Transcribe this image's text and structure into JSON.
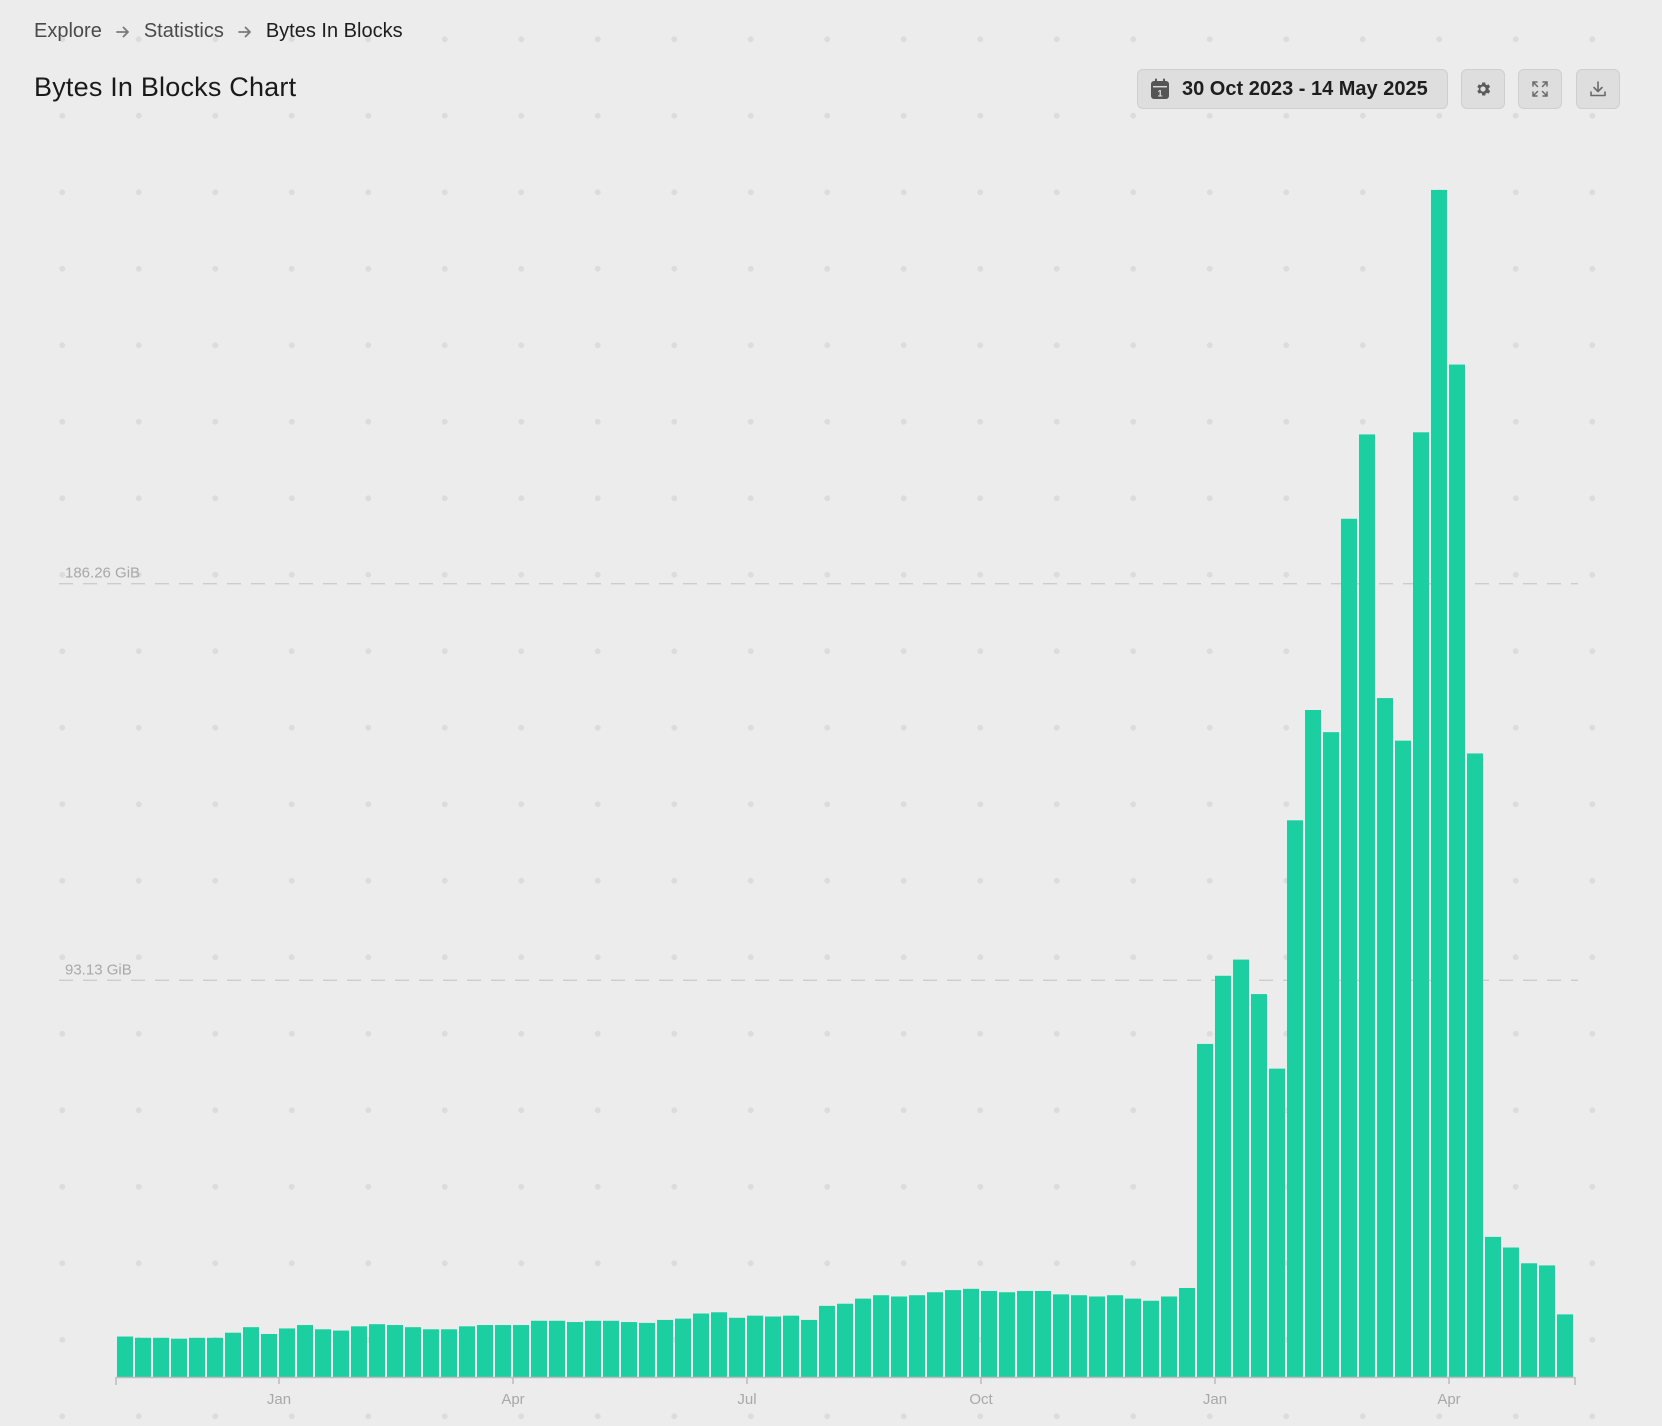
{
  "breadcrumb": {
    "items": [
      "Explore",
      "Statistics"
    ],
    "current": "Bytes In Blocks"
  },
  "page": {
    "title": "Bytes In Blocks Chart"
  },
  "toolbar": {
    "date_range": "30 Oct 2023 - 14 May 2025",
    "icons": {
      "date": "calendar-icon",
      "settings": "gear-icon",
      "expand": "expand-icon",
      "download": "download-icon"
    }
  },
  "colors": {
    "bar": "#1ccfa0",
    "gridline": "#cccccc",
    "axis": "#bdbdbd",
    "label": "#a8a8a8"
  },
  "chart_data": {
    "type": "bar",
    "title": "",
    "xlabel": "",
    "ylabel": "",
    "y_unit": "GiB",
    "grid": true,
    "legend": "none",
    "ylim": [
      0,
      279.39
    ],
    "y_grid_labels": [
      {
        "value": 93.13,
        "label": "93.13 GiB"
      },
      {
        "value": 186.26,
        "label": "186.26 GiB"
      }
    ],
    "x_tick_labels": [
      {
        "index": 9,
        "label": "Jan"
      },
      {
        "index": 22,
        "label": "Apr"
      },
      {
        "index": 35,
        "label": "Jul"
      },
      {
        "index": 48,
        "label": "Oct"
      },
      {
        "index": 61,
        "label": "Jan"
      },
      {
        "index": 74,
        "label": "Apr"
      }
    ],
    "values": [
      9.5,
      9.2,
      9.2,
      9.0,
      9.2,
      9.2,
      10.4,
      11.7,
      10.1,
      11.4,
      12.2,
      11.2,
      10.9,
      11.9,
      12.4,
      12.2,
      11.7,
      11.2,
      11.2,
      11.9,
      12.2,
      12.2,
      12.2,
      13.2,
      13.2,
      12.9,
      13.2,
      13.2,
      12.9,
      12.7,
      13.4,
      13.7,
      14.9,
      15.2,
      13.9,
      14.4,
      14.2,
      14.4,
      13.4,
      16.7,
      17.2,
      18.4,
      19.2,
      18.9,
      19.2,
      19.9,
      20.4,
      20.7,
      20.2,
      19.9,
      20.2,
      20.2,
      19.4,
      19.2,
      18.9,
      19.2,
      18.4,
      17.9,
      18.9,
      20.9,
      78.2,
      94.2,
      98.0,
      89.9,
      72.4,
      130.7,
      156.6,
      151.4,
      201.5,
      221.3,
      159.4,
      149.4,
      221.8,
      278.7,
      237.7,
      146.4,
      32.9,
      30.4,
      26.7,
      26.2,
      14.7
    ]
  }
}
